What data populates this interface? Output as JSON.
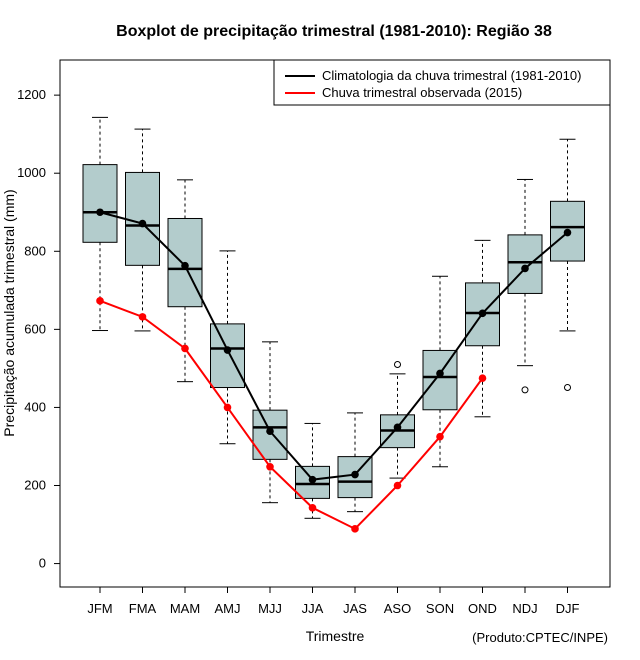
{
  "chart_data": {
    "type": "boxplot",
    "title": "Boxplot de precipitação trimestral (1981-2010): Região 38",
    "xlabel": "Trimestre",
    "ylabel": "Precipitação acumulada trimestral (mm)",
    "ylim": [
      -60,
      1290
    ],
    "yticks": [
      0,
      200,
      400,
      600,
      800,
      1000,
      1200
    ],
    "credit": "(Produto:CPTEC/INPE)",
    "legend_position": "top-right",
    "categories": [
      "JFM",
      "FMA",
      "MAM",
      "AMJ",
      "MJJ",
      "JJA",
      "JAS",
      "ASO",
      "SON",
      "OND",
      "NDJ",
      "DJF"
    ],
    "boxes": [
      {
        "whisker_low": 597,
        "q1": 823,
        "median": 900,
        "q3": 1022,
        "whisker_high": 1143,
        "outliers": []
      },
      {
        "whisker_low": 596,
        "q1": 764,
        "median": 866,
        "q3": 1002,
        "whisker_high": 1113,
        "outliers": []
      },
      {
        "whisker_low": 466,
        "q1": 658,
        "median": 755,
        "q3": 884,
        "whisker_high": 983,
        "outliers": []
      },
      {
        "whisker_low": 307,
        "q1": 451,
        "median": 551,
        "q3": 614,
        "whisker_high": 801,
        "outliers": []
      },
      {
        "whisker_low": 156,
        "q1": 267,
        "median": 349,
        "q3": 393,
        "whisker_high": 568,
        "outliers": []
      },
      {
        "whisker_low": 116,
        "q1": 167,
        "median": 204,
        "q3": 249,
        "whisker_high": 359,
        "outliers": []
      },
      {
        "whisker_low": 133,
        "q1": 169,
        "median": 210,
        "q3": 274,
        "whisker_high": 386,
        "outliers": []
      },
      {
        "whisker_low": 219,
        "q1": 297,
        "median": 341,
        "q3": 381,
        "whisker_high": 486,
        "outliers": [
          510
        ]
      },
      {
        "whisker_low": 248,
        "q1": 394,
        "median": 478,
        "q3": 546,
        "whisker_high": 736,
        "outliers": []
      },
      {
        "whisker_low": 376,
        "q1": 558,
        "median": 642,
        "q3": 719,
        "whisker_high": 828,
        "outliers": []
      },
      {
        "whisker_low": 507,
        "q1": 692,
        "median": 772,
        "q3": 842,
        "whisker_high": 984,
        "outliers": [
          445
        ]
      },
      {
        "whisker_low": 596,
        "q1": 775,
        "median": 862,
        "q3": 928,
        "whisker_high": 1087,
        "outliers": [
          451
        ]
      }
    ],
    "series": [
      {
        "name": "Climatologia da chuva trimestral (1981-2010)",
        "color": "#000000",
        "values": [
          900,
          871,
          763,
          547,
          339,
          215,
          228,
          349,
          487,
          641,
          756,
          848
        ]
      },
      {
        "name": "Chuva trimestral observada (2015)",
        "color": "#ff0000",
        "values": [
          673,
          632,
          551,
          400,
          248,
          143,
          89,
          200,
          325,
          475,
          null,
          null
        ]
      }
    ],
    "box_fill": "#b3cccc"
  }
}
